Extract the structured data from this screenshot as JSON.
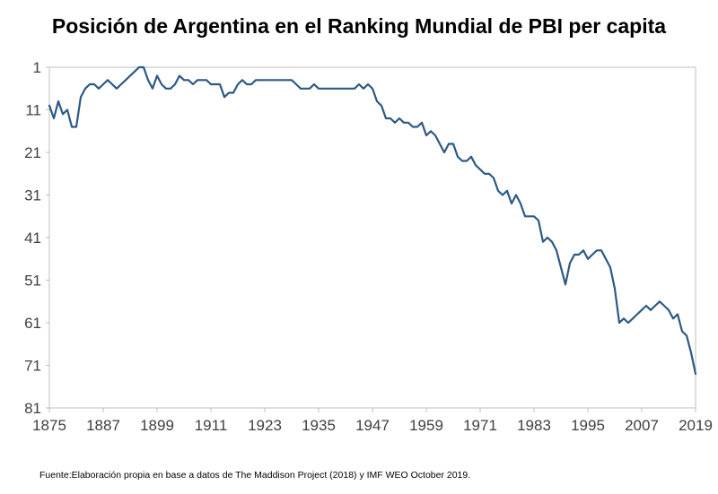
{
  "chart_data": {
    "type": "line",
    "title": "Posición de Argentina en el Ranking Mundial de PBI per capita",
    "source": "Fuente:Elaboración propia en base a datos de The Maddison Project (2018) y IMF WEO October 2019.",
    "series_name": "Posición de Argentina en el ranking mundial de PBI per capita",
    "xlim": [
      1875,
      2019
    ],
    "ylim": [
      1,
      81
    ],
    "y_axis_inverted": true,
    "grid": false,
    "legend": "none",
    "line_color": "#2C5985",
    "x_ticks": [
      1875,
      1887,
      1899,
      1911,
      1923,
      1935,
      1947,
      1959,
      1971,
      1983,
      1995,
      2007,
      2019
    ],
    "y_ticks": [
      1,
      11,
      21,
      31,
      41,
      51,
      61,
      71,
      81
    ],
    "x": [
      1875,
      1876,
      1877,
      1878,
      1879,
      1880,
      1881,
      1882,
      1883,
      1884,
      1885,
      1886,
      1887,
      1888,
      1889,
      1890,
      1891,
      1892,
      1893,
      1894,
      1895,
      1896,
      1897,
      1898,
      1899,
      1900,
      1901,
      1902,
      1903,
      1904,
      1905,
      1906,
      1907,
      1908,
      1909,
      1910,
      1911,
      1912,
      1913,
      1914,
      1915,
      1916,
      1917,
      1918,
      1919,
      1920,
      1921,
      1922,
      1923,
      1924,
      1925,
      1926,
      1927,
      1928,
      1929,
      1930,
      1931,
      1932,
      1933,
      1934,
      1935,
      1936,
      1937,
      1938,
      1939,
      1940,
      1941,
      1942,
      1943,
      1944,
      1945,
      1946,
      1947,
      1948,
      1949,
      1950,
      1951,
      1952,
      1953,
      1954,
      1955,
      1956,
      1957,
      1958,
      1959,
      1960,
      1961,
      1962,
      1963,
      1964,
      1965,
      1966,
      1967,
      1968,
      1969,
      1970,
      1971,
      1972,
      1973,
      1974,
      1975,
      1976,
      1977,
      1978,
      1979,
      1980,
      1981,
      1982,
      1983,
      1984,
      1985,
      1986,
      1987,
      1988,
      1989,
      1990,
      1991,
      1992,
      1993,
      1994,
      1995,
      1996,
      1997,
      1998,
      1999,
      2000,
      2001,
      2002,
      2003,
      2004,
      2005,
      2006,
      2007,
      2008,
      2009,
      2010,
      2011,
      2012,
      2013,
      2014,
      2015,
      2016,
      2017,
      2018,
      2019
    ],
    "values": [
      10,
      13,
      9,
      12,
      11,
      15,
      15,
      8,
      6,
      5,
      5,
      6,
      5,
      4,
      5,
      6,
      5,
      4,
      3,
      2,
      1,
      1,
      4,
      6,
      3,
      5,
      6,
      6,
      5,
      3,
      4,
      4,
      5,
      4,
      4,
      4,
      5,
      5,
      5,
      8,
      7,
      7,
      5,
      4,
      5,
      5,
      4,
      4,
      4,
      4,
      4,
      4,
      4,
      4,
      4,
      5,
      6,
      6,
      6,
      5,
      6,
      6,
      6,
      6,
      6,
      6,
      6,
      6,
      6,
      5,
      6,
      5,
      6,
      9,
      10,
      13,
      13,
      14,
      13,
      14,
      14,
      15,
      15,
      14,
      17,
      16,
      17,
      19,
      21,
      19,
      19,
      22,
      23,
      23,
      22,
      24,
      25,
      26,
      26,
      27,
      30,
      31,
      30,
      33,
      31,
      33,
      36,
      36,
      36,
      37,
      42,
      41,
      42,
      44,
      48,
      52,
      47,
      45,
      45,
      44,
      46,
      45,
      44,
      44,
      46,
      48,
      53,
      61,
      60,
      61,
      60,
      59,
      58,
      57,
      58,
      57,
      56,
      57,
      58,
      60,
      59,
      63,
      64,
      68,
      73
    ]
  }
}
